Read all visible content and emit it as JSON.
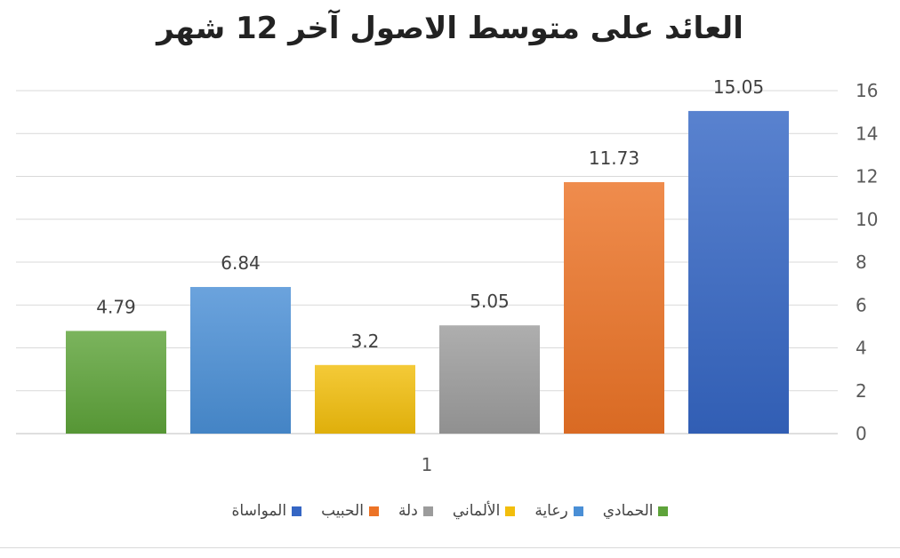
{
  "chart_data": {
    "type": "bar",
    "title": "العائد على متوسط الاصول آخر 12 شهر",
    "categories": [
      "1"
    ],
    "series": [
      {
        "name": "الحمادي",
        "values": [
          4.79
        ],
        "color": "#5ea33a"
      },
      {
        "name": "رعاية",
        "values": [
          6.84
        ],
        "color": "#4a8fd6"
      },
      {
        "name": "الألماني",
        "values": [
          3.2
        ],
        "color": "#f2be0c"
      },
      {
        "name": "دلة",
        "values": [
          5.05
        ],
        "color": "#9c9c9c"
      },
      {
        "name": "الحبيب",
        "values": [
          11.73
        ],
        "color": "#ec7326"
      },
      {
        "name": "المواساة",
        "values": [
          15.05
        ],
        "color": "#3566c4"
      }
    ],
    "data_labels": [
      "4.79",
      "6.84",
      "3.2",
      "5.05",
      "11.73",
      "15.05"
    ],
    "y_ticks": [
      "0",
      "2",
      "4",
      "6",
      "8",
      "10",
      "12",
      "14",
      "16"
    ],
    "ylim": [
      0,
      16
    ],
    "y_axis_position": "right",
    "grid": true,
    "legend_position": "bottom"
  }
}
